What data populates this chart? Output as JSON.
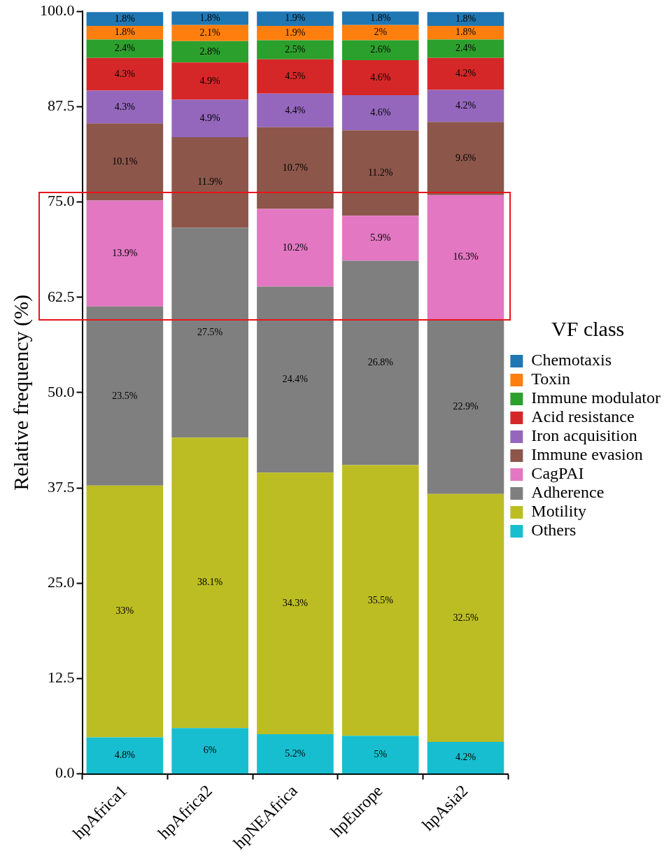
{
  "chart_data": {
    "type": "bar",
    "stacked": true,
    "ylabel": "Relative frequency (%)",
    "legend_title": "VF class",
    "legend": "right",
    "categories": [
      "hpAfrica1",
      "hpAfrica2",
      "hpNEAfrica",
      "hpEurope",
      "hpAsia2"
    ],
    "ylim": [
      0,
      100
    ],
    "yticks": [
      {
        "value": 0,
        "label": "0.0"
      },
      {
        "value": 12.5,
        "label": "12.5"
      },
      {
        "value": 25,
        "label": "25.0"
      },
      {
        "value": 37.5,
        "label": "37.5"
      },
      {
        "value": 50,
        "label": "50.0"
      },
      {
        "value": 62.5,
        "label": "62.5"
      },
      {
        "value": 75,
        "label": "75.0"
      },
      {
        "value": 87.5,
        "label": "87.5"
      },
      {
        "value": 100,
        "label": "100.0"
      }
    ],
    "grid": false,
    "series": [
      {
        "name": "Others",
        "color": "#17becf",
        "values": [
          4.8,
          6,
          5.2,
          5,
          4.2
        ],
        "value_labels": [
          "4.8%",
          "6%",
          "5.2%",
          "5%",
          "4.2%"
        ]
      },
      {
        "name": "Motility",
        "color": "#bcbd22",
        "values": [
          33,
          38.1,
          34.3,
          35.5,
          32.5
        ],
        "value_labels": [
          "33%",
          "38.1%",
          "34.3%",
          "35.5%",
          "32.5%"
        ]
      },
      {
        "name": "Adherence",
        "color": "#7f7f7f",
        "values": [
          23.5,
          27.5,
          24.4,
          26.8,
          22.9
        ],
        "value_labels": [
          "23.5%",
          "27.5%",
          "24.4%",
          "26.8%",
          "22.9%"
        ]
      },
      {
        "name": "CagPAI",
        "color": "#e377c2",
        "values": [
          13.9,
          null,
          10.2,
          5.9,
          16.3
        ],
        "value_labels": [
          "13.9%",
          null,
          "10.2%",
          "5.9%",
          "16.3%"
        ]
      },
      {
        "name": "Immune evasion",
        "color": "#8c564b",
        "values": [
          10.1,
          11.9,
          10.7,
          11.2,
          9.6
        ],
        "value_labels": [
          "10.1%",
          "11.9%",
          "10.7%",
          "11.2%",
          "9.6%"
        ]
      },
      {
        "name": "Iron acquisition",
        "color": "#9467bd",
        "values": [
          4.3,
          4.9,
          4.4,
          4.6,
          4.2
        ],
        "value_labels": [
          "4.3%",
          "4.9%",
          "4.4%",
          "4.6%",
          "4.2%"
        ]
      },
      {
        "name": "Acid resistance",
        "color": "#d62728",
        "values": [
          4.3,
          4.9,
          4.5,
          4.6,
          4.2
        ],
        "value_labels": [
          "4.3%",
          "4.9%",
          "4.5%",
          "4.6%",
          "4.2%"
        ]
      },
      {
        "name": "Immune modulator",
        "color": "#2ca02c",
        "values": [
          2.4,
          2.8,
          2.5,
          2.6,
          2.4
        ],
        "value_labels": [
          "2.4%",
          "2.8%",
          "2.5%",
          "2.6%",
          "2.4%"
        ]
      },
      {
        "name": "Toxin",
        "color": "#ff7f0e",
        "values": [
          1.8,
          2.1,
          1.9,
          2,
          1.8
        ],
        "value_labels": [
          "1.8%",
          "2.1%",
          "1.9%",
          "2%",
          "1.8%"
        ]
      },
      {
        "name": "Chemotaxis",
        "color": "#1f77b4",
        "values": [
          1.8,
          1.8,
          1.9,
          1.8,
          1.8
        ],
        "value_labels": [
          "1.8%",
          "1.8%",
          "1.9%",
          "1.8%",
          "1.8%"
        ]
      }
    ]
  }
}
